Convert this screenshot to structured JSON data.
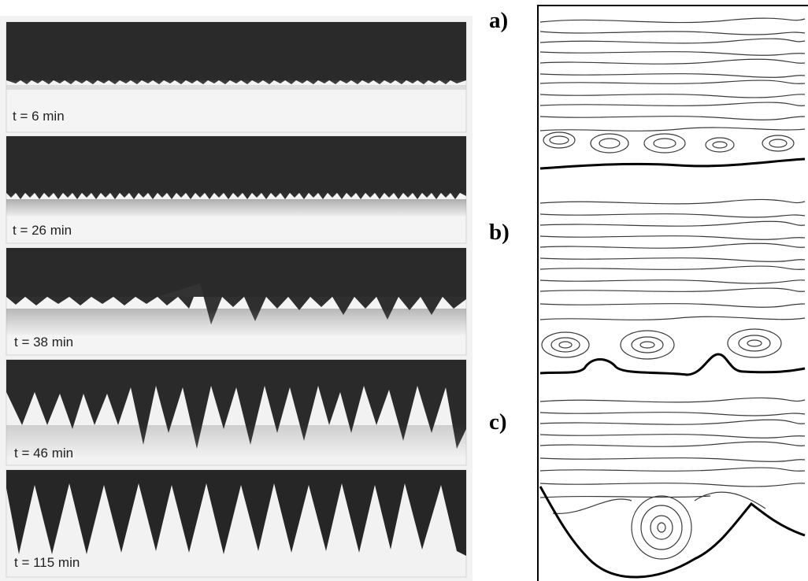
{
  "figure": {
    "left": {
      "frames": [
        {
          "label": "t = 6 min"
        },
        {
          "label": "t = 26 min"
        },
        {
          "label": "t = 38 min"
        },
        {
          "label": "t = 46 min"
        },
        {
          "label": "t = 115 min"
        }
      ]
    },
    "right": {
      "panels": [
        {
          "label": "a)"
        },
        {
          "label": "b)"
        },
        {
          "label": "c)"
        }
      ]
    }
  }
}
